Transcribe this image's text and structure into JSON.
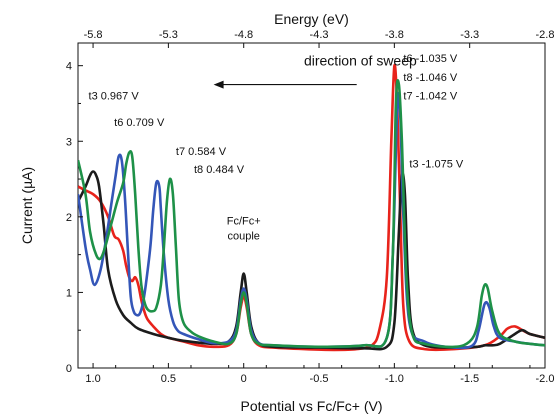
{
  "chart_data": {
    "type": "line",
    "title": "",
    "xlabel": "Potential vs Fc/Fc+ (V)",
    "ylabel": "Current (µA)",
    "top_xlabel": "Energy (eV)",
    "xlim": [
      1.1,
      -2.0
    ],
    "ylim": [
      0,
      4.3
    ],
    "x_ticks": [
      "1.0",
      "0.5",
      "0",
      "-0.5",
      "-1.0",
      "-1.5",
      "-2.0"
    ],
    "x_tick_values": [
      1.0,
      0.5,
      0,
      -0.5,
      -1.0,
      -1.5,
      -2.0
    ],
    "y_ticks": [
      "0",
      "1",
      "2",
      "3",
      "4"
    ],
    "y_tick_values": [
      0,
      1,
      2,
      3,
      4
    ],
    "top_ticks": [
      "-5.8",
      "-5.3",
      "-4.8",
      "-4.3",
      "-3.8",
      "-3.3",
      "-2.8"
    ],
    "top_tick_values": [
      1.0,
      0.5,
      0,
      -0.5,
      -1.0,
      -1.5,
      -2.0
    ],
    "grid": false,
    "series": [
      {
        "color": "#e8231b",
        "x": [
          1.1,
          1.05,
          1.0,
          0.95,
          0.9,
          0.86,
          0.83,
          0.8,
          0.78,
          0.76,
          0.74,
          0.72,
          0.7,
          0.68,
          0.66,
          0.64,
          0.6,
          0.55,
          0.5,
          0.4,
          0.3,
          0.2,
          0.1,
          0.05,
          0.02,
          0.0,
          -0.02,
          -0.05,
          -0.1,
          -0.2,
          -0.4,
          -0.6,
          -0.75,
          -0.85,
          -0.9,
          -0.95,
          -0.98,
          -1.0,
          -1.02,
          -1.04,
          -1.06,
          -1.1,
          -1.2,
          -1.4,
          -1.6,
          -1.7,
          -1.75,
          -1.8,
          -1.85,
          -1.9,
          -2.0
        ],
        "y": [
          2.4,
          2.35,
          2.3,
          2.2,
          2.0,
          1.75,
          1.7,
          1.55,
          1.35,
          1.2,
          1.15,
          1.2,
          1.1,
          0.9,
          0.75,
          0.65,
          0.55,
          0.45,
          0.4,
          0.35,
          0.3,
          0.28,
          0.3,
          0.45,
          0.8,
          0.95,
          0.8,
          0.45,
          0.3,
          0.27,
          0.25,
          0.24,
          0.25,
          0.3,
          0.5,
          1.2,
          3.0,
          4.0,
          3.4,
          2.0,
          0.8,
          0.35,
          0.25,
          0.25,
          0.3,
          0.42,
          0.52,
          0.55,
          0.5,
          0.45,
          0.4
        ]
      },
      {
        "color": "#1c1c1c",
        "x": [
          1.1,
          1.05,
          1.02,
          1.0,
          0.98,
          0.96,
          0.93,
          0.9,
          0.85,
          0.8,
          0.75,
          0.7,
          0.6,
          0.5,
          0.4,
          0.2,
          0.1,
          0.05,
          0.02,
          0.0,
          -0.02,
          -0.05,
          -0.1,
          -0.2,
          -0.5,
          -0.8,
          -0.95,
          -1.0,
          -1.03,
          -1.05,
          -1.07,
          -1.09,
          -1.12,
          -1.2,
          -1.4,
          -1.55,
          -1.6,
          -1.65,
          -1.7,
          -1.8,
          -1.85,
          -1.9,
          -2.0
        ],
        "y": [
          2.2,
          2.4,
          2.55,
          2.6,
          2.55,
          2.4,
          1.9,
          1.3,
          0.9,
          0.7,
          0.6,
          0.52,
          0.45,
          0.4,
          0.36,
          0.32,
          0.35,
          0.55,
          1.0,
          1.25,
          1.0,
          0.55,
          0.33,
          0.28,
          0.27,
          0.26,
          0.28,
          0.6,
          1.8,
          2.55,
          2.3,
          1.2,
          0.5,
          0.3,
          0.27,
          0.28,
          0.3,
          0.3,
          0.32,
          0.45,
          0.5,
          0.45,
          0.4
        ]
      },
      {
        "color": "#3456b8",
        "x": [
          1.1,
          1.05,
          1.02,
          0.99,
          0.95,
          0.91,
          0.88,
          0.85,
          0.83,
          0.81,
          0.79,
          0.77,
          0.75,
          0.73,
          0.71,
          0.69,
          0.67,
          0.65,
          0.62,
          0.6,
          0.58,
          0.56,
          0.55,
          0.53,
          0.5,
          0.47,
          0.44,
          0.4,
          0.3,
          0.2,
          0.1,
          0.05,
          0.02,
          0.0,
          -0.02,
          -0.05,
          -0.1,
          -0.2,
          -0.5,
          -0.8,
          -0.95,
          -0.99,
          -1.02,
          -1.04,
          -1.06,
          -1.1,
          -1.2,
          -1.4,
          -1.52,
          -1.56,
          -1.6,
          -1.63,
          -1.66,
          -1.7,
          -1.8,
          -1.9,
          -2.0
        ],
        "y": [
          2.3,
          1.6,
          1.3,
          1.1,
          1.3,
          1.75,
          2.15,
          2.55,
          2.8,
          2.75,
          2.3,
          1.6,
          0.95,
          0.75,
          0.7,
          0.72,
          0.85,
          1.1,
          1.6,
          2.1,
          2.45,
          2.4,
          2.1,
          1.5,
          0.9,
          0.62,
          0.5,
          0.45,
          0.38,
          0.33,
          0.35,
          0.5,
          0.9,
          1.05,
          0.9,
          0.5,
          0.33,
          0.3,
          0.28,
          0.3,
          0.4,
          1.5,
          3.5,
          3.3,
          2.0,
          0.6,
          0.35,
          0.27,
          0.3,
          0.5,
          0.85,
          0.8,
          0.55,
          0.4,
          0.35,
          0.32,
          0.3
        ]
      },
      {
        "color": "#1e9148",
        "x": [
          1.1,
          1.05,
          1.02,
          0.98,
          0.95,
          0.92,
          0.88,
          0.84,
          0.8,
          0.78,
          0.76,
          0.74,
          0.72,
          0.7,
          0.68,
          0.66,
          0.64,
          0.61,
          0.58,
          0.55,
          0.53,
          0.51,
          0.49,
          0.47,
          0.45,
          0.43,
          0.4,
          0.35,
          0.3,
          0.2,
          0.1,
          0.05,
          0.02,
          0.0,
          -0.02,
          -0.05,
          -0.1,
          -0.2,
          -0.5,
          -0.8,
          -0.95,
          -0.99,
          -1.01,
          -1.03,
          -1.05,
          -1.08,
          -1.12,
          -1.2,
          -1.4,
          -1.5,
          -1.55,
          -1.58,
          -1.6,
          -1.62,
          -1.65,
          -1.7,
          -1.8,
          -1.9,
          -2.0
        ],
        "y": [
          2.75,
          2.3,
          1.8,
          1.5,
          1.45,
          1.6,
          1.9,
          2.2,
          2.45,
          2.7,
          2.85,
          2.8,
          2.3,
          1.6,
          1.1,
          0.88,
          0.78,
          0.75,
          0.8,
          1.1,
          1.6,
          2.2,
          2.5,
          2.3,
          1.6,
          0.9,
          0.6,
          0.48,
          0.42,
          0.35,
          0.32,
          0.45,
          0.85,
          1.0,
          0.85,
          0.45,
          0.32,
          0.3,
          0.28,
          0.3,
          0.4,
          1.5,
          3.5,
          3.75,
          3.0,
          1.2,
          0.45,
          0.32,
          0.28,
          0.35,
          0.55,
          0.95,
          1.1,
          1.05,
          0.75,
          0.45,
          0.35,
          0.32,
          0.3
        ]
      }
    ],
    "annotations": [
      {
        "text": "direction of sweep",
        "x": -0.4,
        "y": 4.0
      },
      {
        "text": "t3 0.967 V",
        "x": 1.03,
        "y": 3.55
      },
      {
        "text": "t6 0.709 V",
        "x": 0.86,
        "y": 3.2
      },
      {
        "text": "t7 0.584 V",
        "x": 0.45,
        "y": 2.82
      },
      {
        "text": "t8 0.484 V",
        "x": 0.33,
        "y": 2.58
      },
      {
        "text": "t6 -1.035 V",
        "x": -1.06,
        "y": 4.05
      },
      {
        "text": "t8 -1.046 V",
        "x": -1.06,
        "y": 3.8
      },
      {
        "text": "t7 -1.042 V",
        "x": -1.06,
        "y": 3.55
      },
      {
        "text": "t3 -1.075 V",
        "x": -1.1,
        "y": 2.65
      },
      {
        "text": "Fc/Fc+",
        "x": 0.0,
        "y": 1.9
      },
      {
        "text": "couple",
        "x": 0.0,
        "y": 1.7
      }
    ],
    "arrow": {
      "x_from": -0.75,
      "x_to": 0.2,
      "y": 3.75
    }
  }
}
